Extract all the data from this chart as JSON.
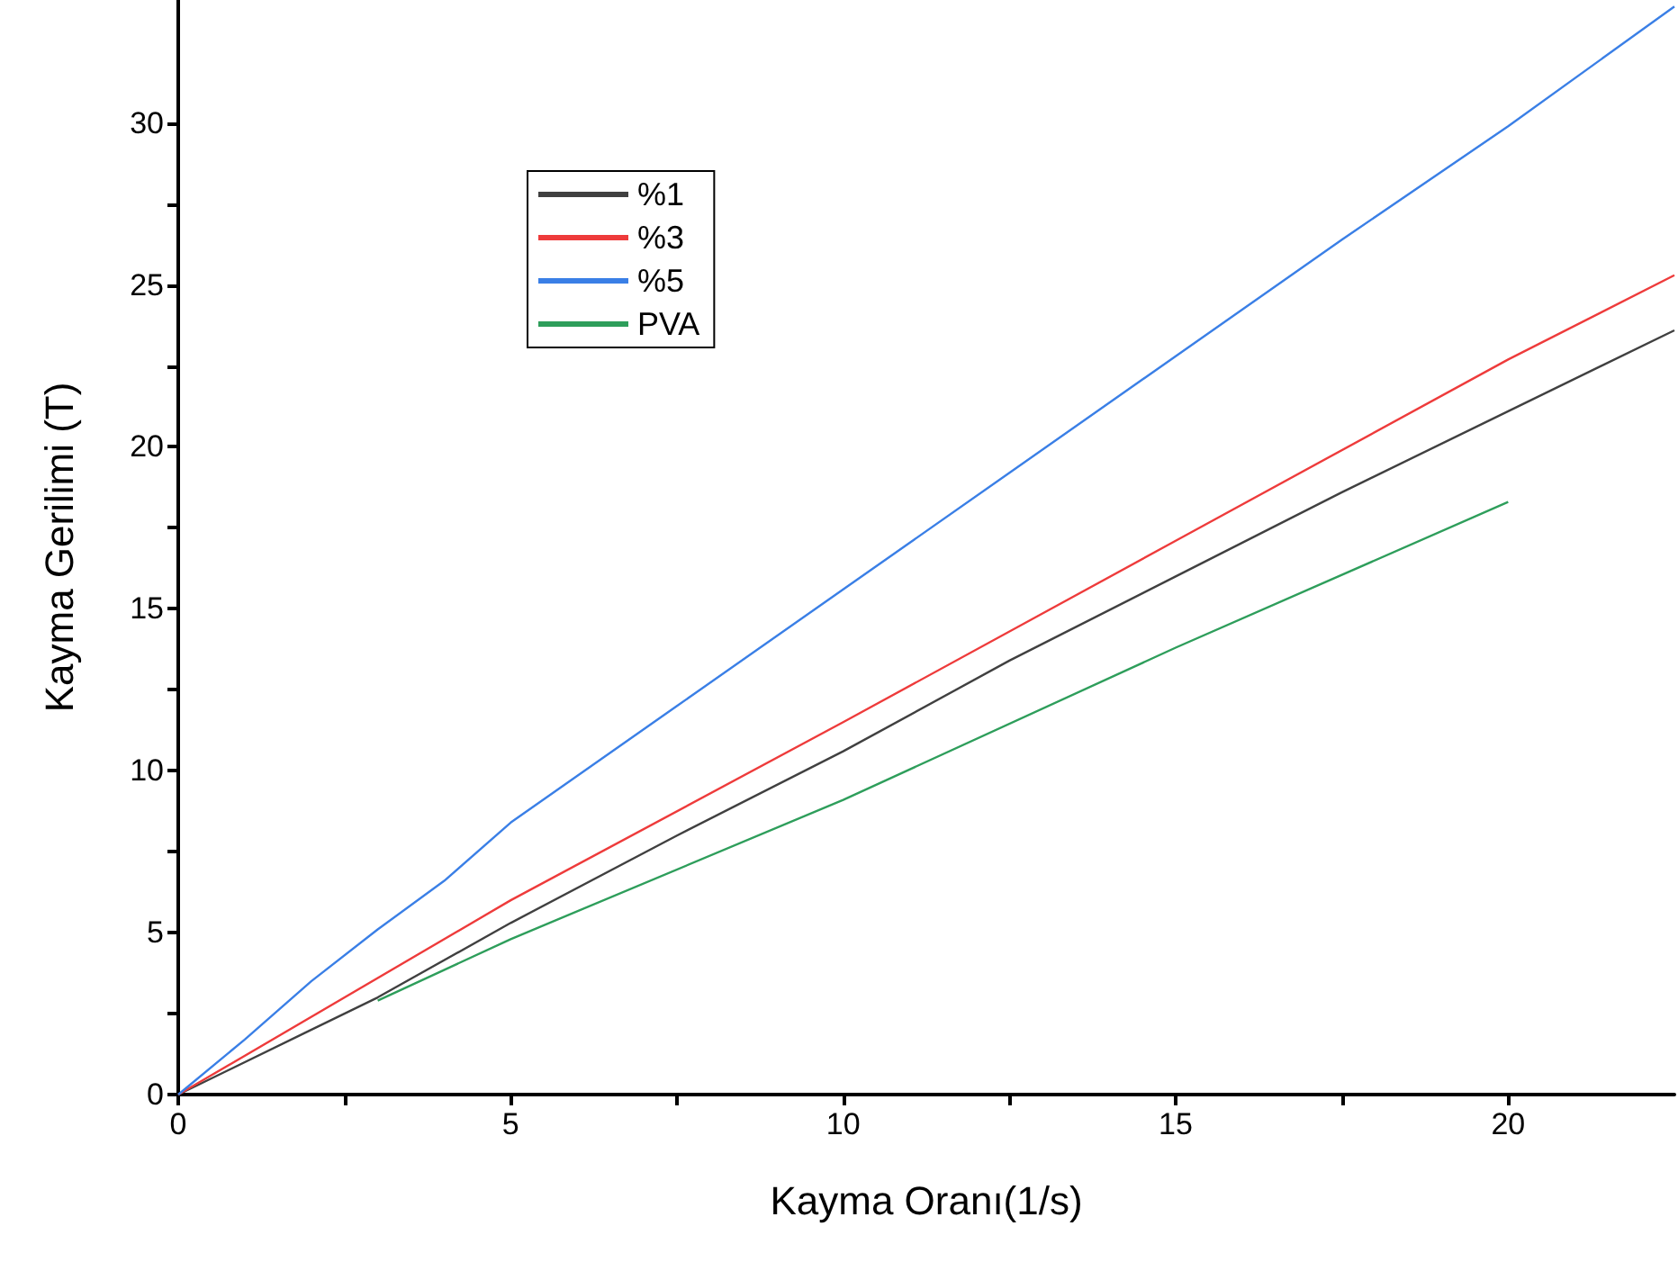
{
  "chart_data": {
    "type": "line",
    "xlabel": "Kayma Oranı(1/s)",
    "ylabel": "Kayma Gerilimi (T)",
    "xlim": [
      0,
      22.5
    ],
    "ylim": [
      0,
      33.8
    ],
    "xticks": [
      0,
      {
        "value": 2.5,
        "label": null
      },
      5,
      {
        "value": 7.5,
        "label": null
      },
      10,
      {
        "value": 12.5,
        "label": null
      },
      15,
      {
        "value": 17.5,
        "label": null
      },
      20
    ],
    "yticks": [
      0,
      {
        "value": 2.5,
        "label": null
      },
      5,
      {
        "value": 7.5,
        "label": null
      },
      10,
      {
        "value": 12.5,
        "label": null
      },
      15,
      {
        "value": 17.5,
        "label": null
      },
      20,
      {
        "value": 22.5,
        "label": null
      },
      25,
      {
        "value": 27.5,
        "label": null
      },
      30
    ],
    "grid": false,
    "legend": "top left",
    "marker": "none",
    "line_style": "solid",
    "series": [
      {
        "name": "%1",
        "color": "#404040",
        "x": [
          0,
          1.9,
          3,
          5,
          7.5,
          10,
          12.5,
          15,
          17.5,
          20,
          22.5
        ],
        "values": [
          0,
          1.9,
          3.0,
          5.3,
          8.0,
          10.6,
          13.4,
          16.0,
          18.6,
          21.1,
          23.6
        ]
      },
      {
        "name": "%3",
        "color": "#ee3b3b",
        "x": [
          0,
          5,
          10,
          15,
          20,
          22.5
        ],
        "values": [
          0,
          6.0,
          11.5,
          17.1,
          22.7,
          25.3
        ]
      },
      {
        "name": "%5",
        "color": "#3a7fe6",
        "x": [
          0,
          1,
          2,
          3,
          4,
          5,
          7.5,
          10,
          12.5,
          15,
          17.5,
          20,
          22.5
        ],
        "values": [
          0,
          1.7,
          3.5,
          5.1,
          6.6,
          8.4,
          12.0,
          15.6,
          19.2,
          22.8,
          26.4,
          29.9,
          33.6
        ]
      },
      {
        "name": "PVA",
        "color": "#2e9e5b",
        "x": [
          3,
          5,
          10,
          15,
          20
        ],
        "values": [
          2.9,
          4.8,
          9.1,
          13.8,
          18.3
        ]
      }
    ]
  }
}
